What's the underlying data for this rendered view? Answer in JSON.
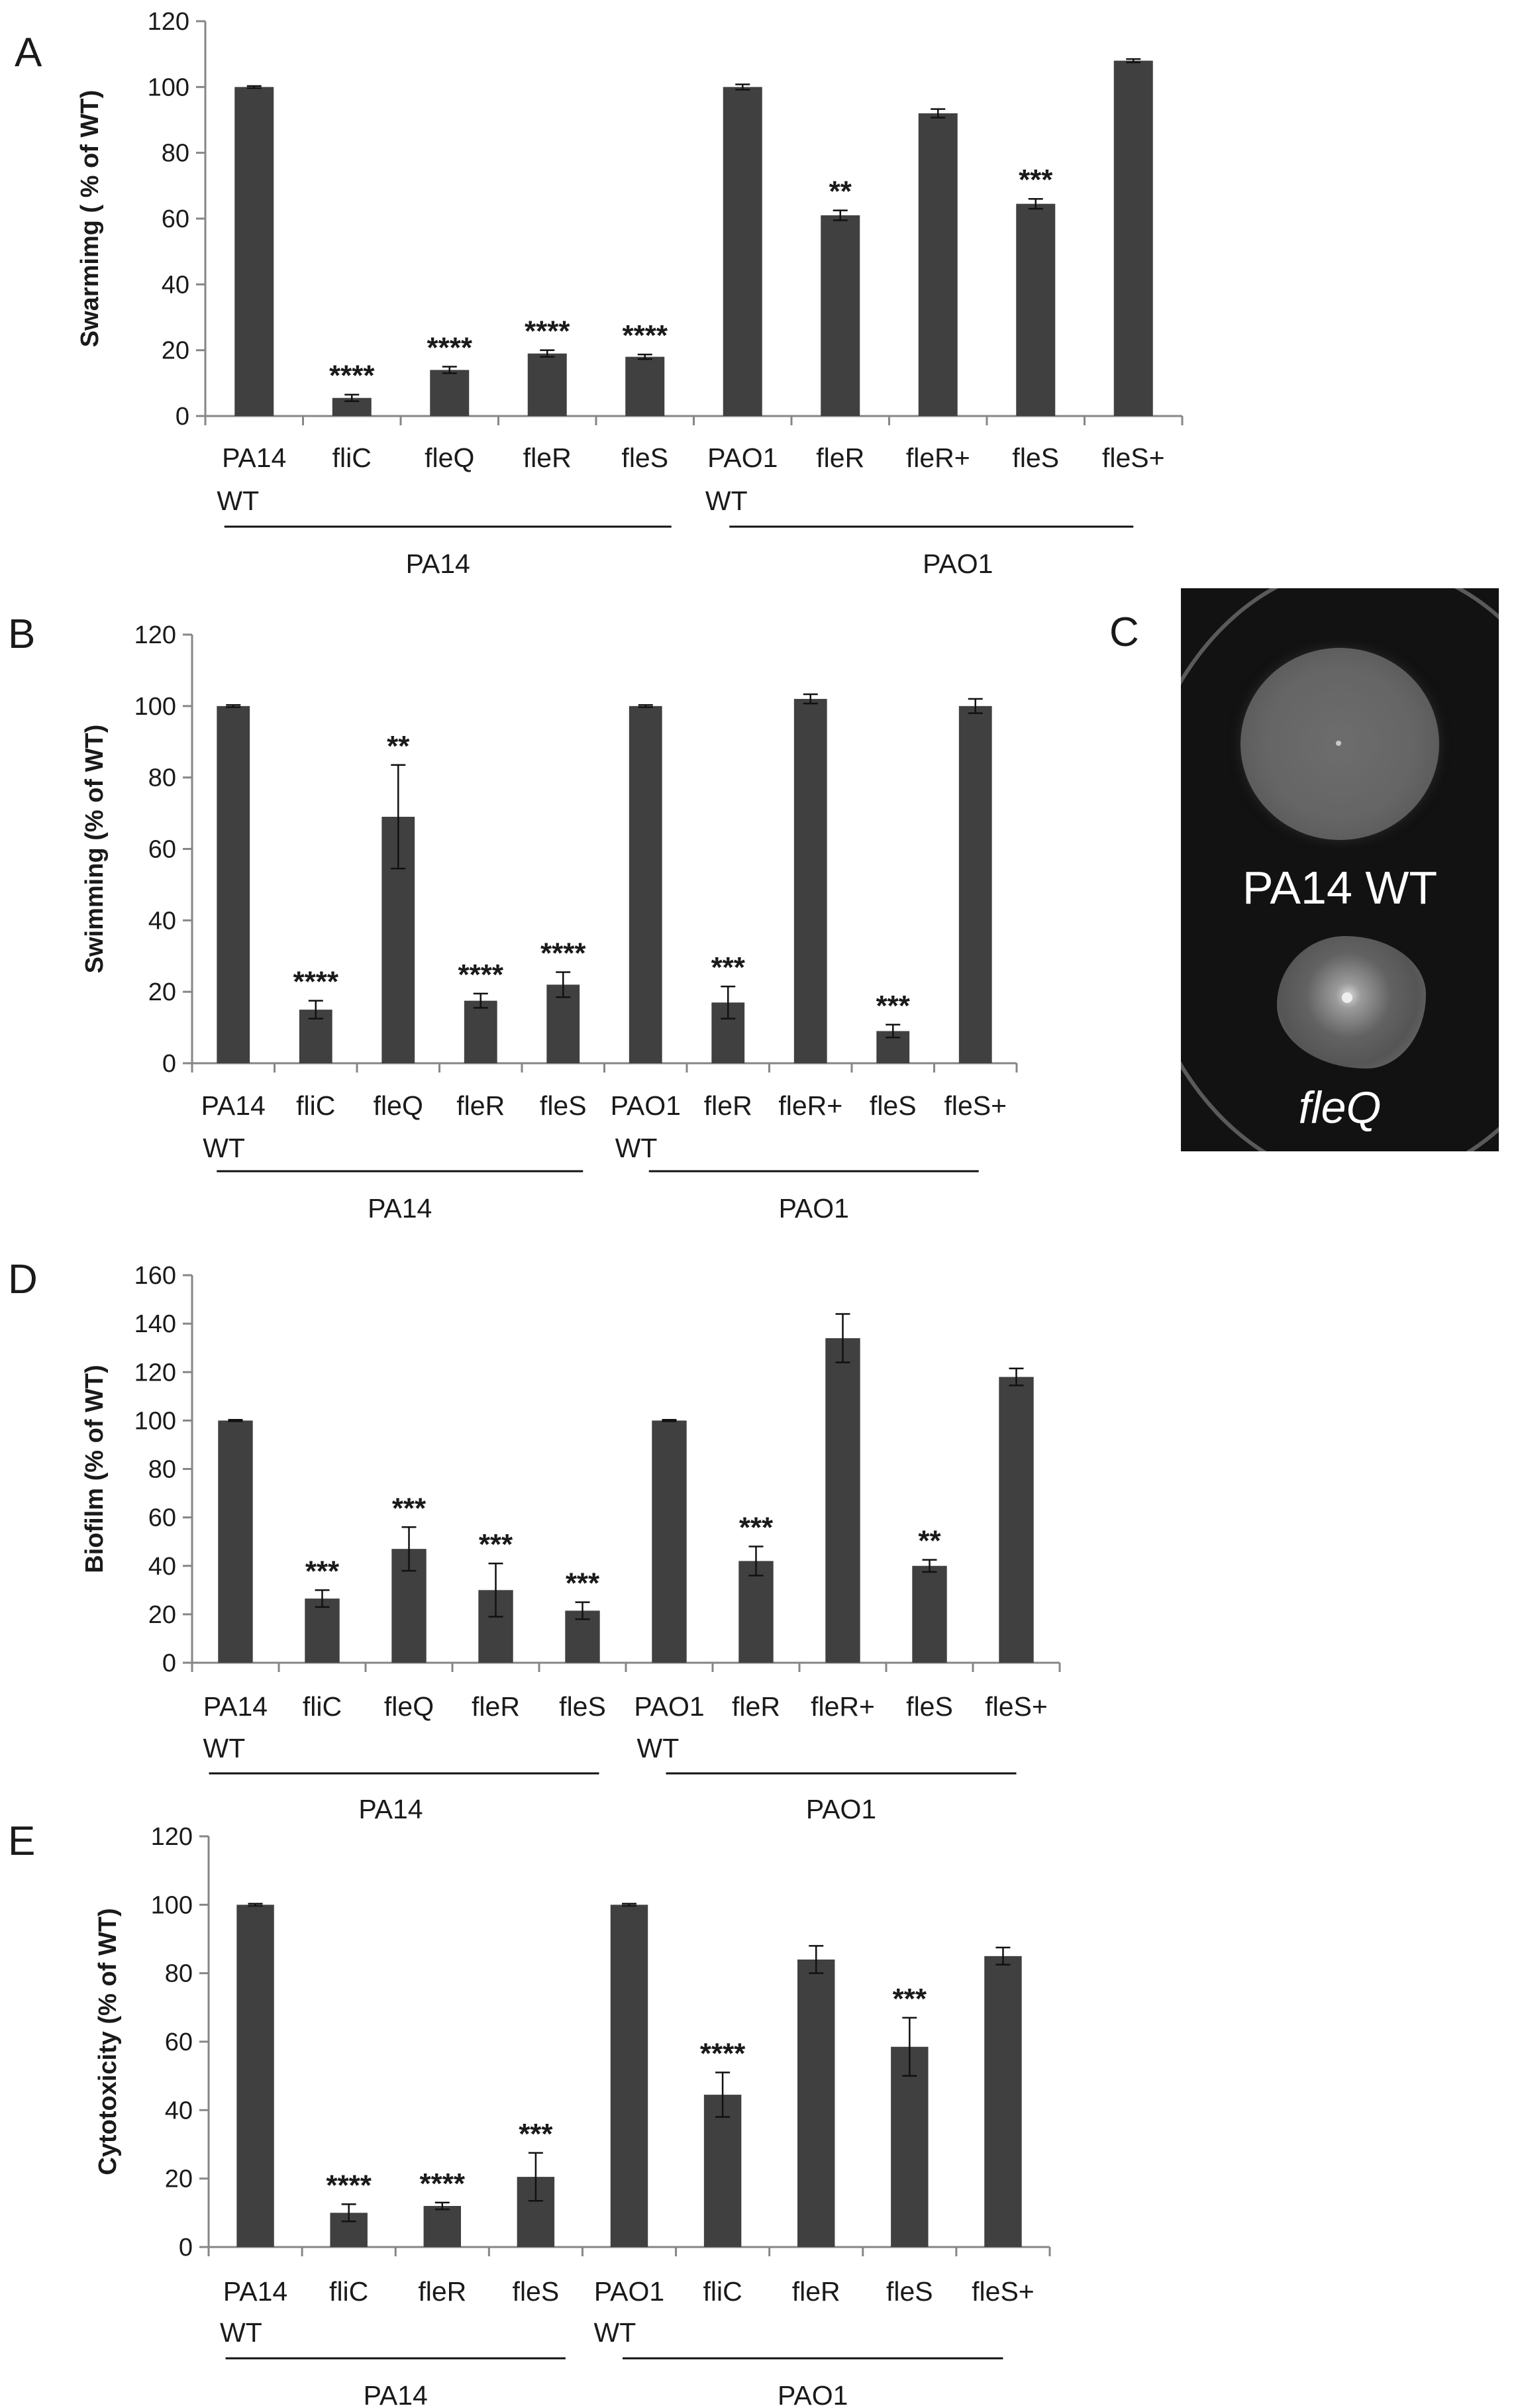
{
  "figure": {
    "colors": {
      "bar": "#404040",
      "axis": "#868686",
      "text": "#1a1a1a",
      "photo_bg": "#121212"
    }
  },
  "chart_data": [
    {
      "panel": "A",
      "type": "bar",
      "ylabel": "Swarmimg ( % of WT)",
      "ylim": [
        0,
        120
      ],
      "yticks": [
        0,
        20,
        40,
        60,
        80,
        100,
        120
      ],
      "categories": [
        "PA14",
        "fliC",
        "fleQ",
        "fleR",
        "fleS",
        "PAO1",
        "fleR",
        "fleR+",
        "fleS",
        "fleS+"
      ],
      "sublabels": [
        "WT",
        "",
        "",
        "",
        "",
        "WT",
        "",
        "",
        "",
        ""
      ],
      "values": [
        100,
        5.5,
        14,
        19,
        18,
        100,
        61,
        92,
        64.5,
        108
      ],
      "errors": [
        0.3,
        1.0,
        1.0,
        1.0,
        0.7,
        0.8,
        1.5,
        1.3,
        1.5,
        0.5
      ],
      "annotations": [
        "",
        "****",
        "****",
        "****",
        "****",
        "",
        "**",
        "",
        "***",
        ""
      ],
      "groups": [
        {
          "label": "PA14",
          "from": 0,
          "to": 4
        },
        {
          "label": "PAO1",
          "from": 5,
          "to": 9
        }
      ]
    },
    {
      "panel": "B",
      "type": "bar",
      "ylabel": "Swimming (% of WT)",
      "ylim": [
        0,
        120
      ],
      "yticks": [
        0,
        20,
        40,
        60,
        80,
        100,
        120
      ],
      "categories": [
        "PA14",
        "fliC",
        "fleQ",
        "fleR",
        "fleS",
        "PAO1",
        "fleR",
        "fleR+",
        "fleS",
        "fleS+"
      ],
      "sublabels": [
        "WT",
        "",
        "",
        "",
        "",
        "WT",
        "",
        "",
        "",
        ""
      ],
      "values": [
        100,
        15,
        69,
        17.5,
        22,
        100,
        17,
        102,
        9,
        100
      ],
      "errors": [
        0.3,
        2.5,
        14.5,
        2.0,
        3.5,
        0.3,
        4.5,
        1.3,
        1.8,
        2.0
      ],
      "annotations": [
        "",
        "****",
        "**",
        "****",
        "****",
        "",
        "***",
        "",
        "***",
        ""
      ],
      "groups": [
        {
          "label": "PA14",
          "from": 0,
          "to": 4
        },
        {
          "label": "PAO1",
          "from": 5,
          "to": 9
        }
      ]
    },
    {
      "panel": "D",
      "type": "bar",
      "ylabel": "Biofilm (% of WT)",
      "ylim": [
        0,
        160
      ],
      "yticks": [
        0,
        20,
        40,
        60,
        80,
        100,
        120,
        140,
        160
      ],
      "categories": [
        "PA14",
        "fliC",
        "fleQ",
        "fleR",
        "fleS",
        "PAO1",
        "fleR",
        "fleR+",
        "fleS",
        "fleS+"
      ],
      "sublabels": [
        "WT",
        "",
        "",
        "",
        "",
        "WT",
        "",
        "",
        "",
        ""
      ],
      "values": [
        100,
        26.5,
        47,
        30,
        21.5,
        100,
        42,
        134,
        40,
        118
      ],
      "errors": [
        0.3,
        3.5,
        9.0,
        11.0,
        3.5,
        0.3,
        6.0,
        10.0,
        2.5,
        3.5
      ],
      "annotations": [
        "",
        "***",
        "***",
        "***",
        "***",
        "",
        "***",
        "",
        "**",
        ""
      ],
      "groups": [
        {
          "label": "PA14",
          "from": 0,
          "to": 4
        },
        {
          "label": "PAO1",
          "from": 5,
          "to": 9
        }
      ]
    },
    {
      "panel": "E",
      "type": "bar",
      "ylabel": "Cytotoxicity (% of WT)",
      "ylim": [
        0,
        120
      ],
      "yticks": [
        0,
        20,
        40,
        60,
        80,
        100,
        120
      ],
      "categories": [
        "PA14",
        "fliC",
        "fleR",
        "fleS",
        "PAO1",
        "fliC",
        "fleR",
        "fleS",
        "fleS+"
      ],
      "sublabels": [
        "WT",
        "",
        "",
        "",
        "WT",
        "",
        "",
        "",
        ""
      ],
      "values": [
        100,
        10,
        12,
        20.5,
        100,
        44.5,
        84,
        58.5,
        85
      ],
      "errors": [
        0.3,
        2.5,
        1.0,
        7.0,
        0.3,
        6.5,
        4.0,
        8.5,
        2.5
      ],
      "annotations": [
        "",
        "****",
        "****",
        "***",
        "",
        "****",
        "",
        "***",
        ""
      ],
      "groups": [
        {
          "label": "PA14",
          "from": 0,
          "to": 3
        },
        {
          "label": "PAO1",
          "from": 4,
          "to": 8
        }
      ]
    }
  ],
  "photo_panel": {
    "panel": "C",
    "top_label": "PA14 WT",
    "bottom_label": "fleQ"
  }
}
